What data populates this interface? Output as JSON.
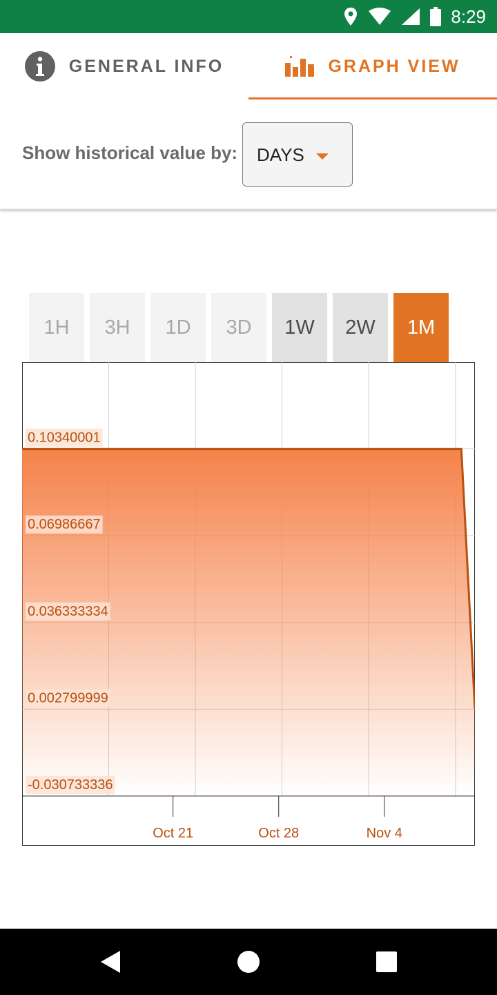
{
  "status_bar": {
    "time": "8:29",
    "icons": [
      "location-icon",
      "wifi-icon",
      "signal-icon",
      "battery-icon"
    ]
  },
  "tabs": [
    {
      "label": "GENERAL INFO",
      "icon": "info-icon"
    },
    {
      "label": "GRAPH VIEW",
      "icon": "bar-chart-icon",
      "active": true
    }
  ],
  "filter": {
    "label": "Show historical value by:",
    "selected": "DAYS"
  },
  "ranges": [
    {
      "label": "1H",
      "state": "disabled"
    },
    {
      "label": "3H",
      "state": "disabled"
    },
    {
      "label": "1D",
      "state": "disabled"
    },
    {
      "label": "3D",
      "state": "disabled"
    },
    {
      "label": "1W",
      "state": "enabled"
    },
    {
      "label": "2W",
      "state": "enabled"
    },
    {
      "label": "1M",
      "state": "active"
    }
  ],
  "colors": {
    "accent": "#e07424",
    "line": "#b8500f",
    "fill_top": "#f5824a",
    "status_bar": "#0f8145"
  },
  "chart_data": {
    "type": "area",
    "y_ticks": [
      "0.10340001",
      "0.06986667",
      "0.036333334",
      "0.002799999",
      "-0.030733336"
    ],
    "y_tick_values": [
      0.10340001,
      0.06986667,
      0.036333334,
      0.002799999,
      -0.030733336
    ],
    "ylim": [
      -0.030733336,
      0.13693334
    ],
    "x_ticks": [
      "Oct 21",
      "Oct 28",
      "Nov 4"
    ],
    "x_tick_day_values": [
      21,
      28,
      35
    ],
    "xlim": [
      11,
      41
    ],
    "series": [
      {
        "x": [
          11,
          40.1,
          41
        ],
        "y": [
          0.10340001,
          0.10340001,
          0.002799999
        ]
      }
    ],
    "grid": true
  },
  "nav": [
    "back-icon",
    "home-icon",
    "recents-icon"
  ]
}
